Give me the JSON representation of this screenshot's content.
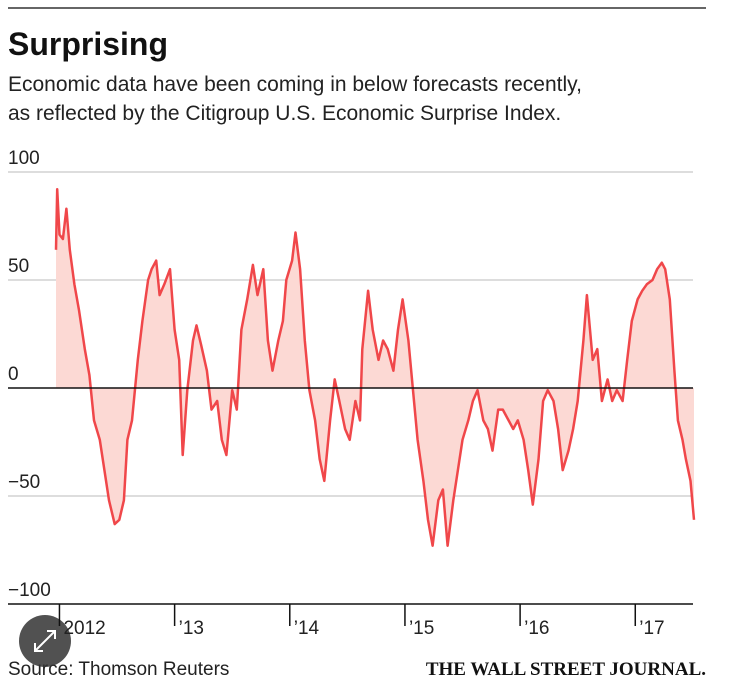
{
  "chart_data": {
    "type": "area",
    "title": "Surprising",
    "subtitle": [
      "Economic data have been coming in below forecasts recently,",
      "as reflected by the Citigroup U.S. Economic Surprise Index."
    ],
    "source": "Source: Thomson Reuters",
    "credit": "THE WALL STREET JOURNAL.",
    "x": [
      2011.97,
      2011.98,
      2012.0,
      2012.03,
      2012.06,
      2012.09,
      2012.13,
      2012.17,
      2012.22,
      2012.26,
      2012.3,
      2012.35,
      2012.39,
      2012.43,
      2012.48,
      2012.52,
      2012.56,
      2012.59,
      2012.63,
      2012.68,
      2012.72,
      2012.77,
      2012.8,
      2012.84,
      2012.87,
      2012.91,
      2012.96,
      2013.0,
      2013.04,
      2013.07,
      2013.11,
      2013.16,
      2013.19,
      2013.23,
      2013.28,
      2013.32,
      2013.37,
      2013.41,
      2013.45,
      2013.5,
      2013.54,
      2013.58,
      2013.63,
      2013.68,
      2013.72,
      2013.77,
      2013.81,
      2013.85,
      2013.9,
      2013.94,
      2013.97,
      2014.02,
      2014.05,
      2014.09,
      2014.13,
      2014.17,
      2014.22,
      2014.26,
      2014.3,
      2014.35,
      2014.39,
      2014.43,
      2014.48,
      2014.52,
      2014.57,
      2014.61,
      2014.63,
      2014.68,
      2014.72,
      2014.77,
      2014.81,
      2014.85,
      2014.9,
      2014.94,
      2014.98,
      2015.03,
      2015.07,
      2015.11,
      2015.16,
      2015.2,
      2015.24,
      2015.29,
      2015.33,
      2015.37,
      2015.42,
      2015.46,
      2015.5,
      2015.55,
      2015.59,
      2015.63,
      2015.68,
      2015.72,
      2015.76,
      2015.81,
      2015.85,
      2015.9,
      2015.94,
      2015.98,
      2016.03,
      2016.07,
      2016.11,
      2016.16,
      2016.2,
      2016.24,
      2016.29,
      2016.33,
      2016.37,
      2016.42,
      2016.46,
      2016.5,
      2016.55,
      2016.58,
      2016.63,
      2016.67,
      2016.71,
      2016.76,
      2016.8,
      2016.84,
      2016.89,
      2016.93,
      2016.97,
      2017.02,
      2017.06,
      2017.1,
      2017.15,
      2017.19,
      2017.23,
      2017.26,
      2017.3,
      2017.34,
      2017.37,
      2017.41,
      2017.44,
      2017.48,
      2017.51
    ],
    "series": [
      {
        "color": "#f0474a",
        "fill": "#fcd9d4",
        "values": [
          64,
          92,
          71,
          69,
          83,
          64,
          48,
          36,
          18,
          6,
          -15,
          -24,
          -38,
          -52,
          -63,
          -61,
          -52,
          -24,
          -15,
          13,
          31,
          50,
          55,
          59,
          43,
          48,
          55,
          27,
          13,
          -31,
          -1,
          22,
          29,
          20,
          8,
          -10,
          -6,
          -24,
          -31,
          -1,
          -10,
          27,
          41,
          57,
          43,
          55,
          22,
          8,
          22,
          31,
          50,
          59,
          72,
          55,
          22,
          -1,
          -15,
          -33,
          -43,
          -15,
          4,
          -6,
          -19,
          -24,
          -6,
          -15,
          18,
          45,
          27,
          13,
          22,
          18,
          8,
          27,
          41,
          22,
          -1,
          -24,
          -43,
          -61,
          -73,
          -52,
          -47,
          -73,
          -52,
          -38,
          -24,
          -15,
          -6,
          -1,
          -15,
          -19,
          -29,
          -10,
          -10,
          -15,
          -19,
          -15,
          -24,
          -38,
          -54,
          -33,
          -6,
          -1,
          -6,
          -19,
          -38,
          -29,
          -19,
          -6,
          22,
          43,
          13,
          18,
          -6,
          4,
          -6,
          -1,
          -6,
          13,
          31,
          41,
          45,
          48,
          50,
          55,
          58,
          55,
          41,
          8,
          -15,
          -24,
          -33,
          -43,
          -61
        ]
      }
    ],
    "xlim": [
      2011.97,
      2017.51
    ],
    "xticks": [
      2012,
      {
        "value": 2013,
        "label": "’13"
      },
      {
        "value": 2014,
        "label": "’14"
      },
      {
        "value": 2015,
        "label": "’15"
      },
      {
        "value": 2016,
        "label": "’16"
      },
      {
        "value": 2017,
        "label": "’17"
      }
    ],
    "ylim": [
      -100,
      100
    ],
    "yticks": [
      100,
      50,
      0,
      {
        "value": -50,
        "label": "−50"
      },
      {
        "value": -100,
        "label": "−100"
      }
    ],
    "grid": true
  }
}
